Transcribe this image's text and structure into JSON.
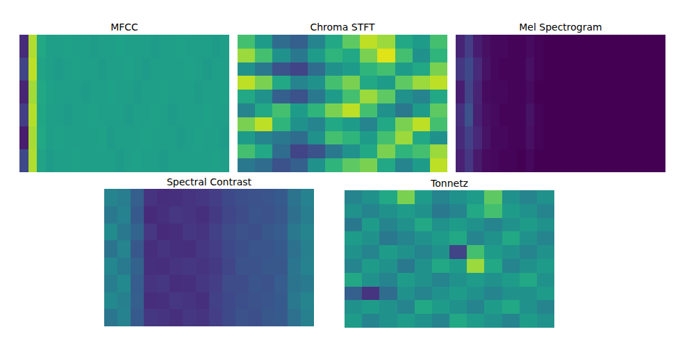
{
  "chart_data": [
    {
      "type": "heatmap",
      "title": "MFCC",
      "color": "viridis",
      "tick_labels": false,
      "color_range": [
        0,
        1
      ],
      "cells": [
        [
          0.12,
          0.88,
          0.6,
          0.56,
          0.56,
          0.57,
          0.56,
          0.56,
          0.55,
          0.56,
          0.56,
          0.57,
          0.56,
          0.56,
          0.56,
          0.55,
          0.56,
          0.56,
          0.57,
          0.56,
          0.56,
          0.56,
          0.55,
          0.56
        ],
        [
          0.2,
          0.9,
          0.58,
          0.56,
          0.55,
          0.56,
          0.57,
          0.56,
          0.56,
          0.55,
          0.56,
          0.56,
          0.57,
          0.56,
          0.55,
          0.56,
          0.56,
          0.56,
          0.56,
          0.57,
          0.56,
          0.55,
          0.56,
          0.56
        ],
        [
          0.1,
          0.86,
          0.6,
          0.57,
          0.56,
          0.56,
          0.56,
          0.55,
          0.56,
          0.56,
          0.57,
          0.56,
          0.56,
          0.55,
          0.56,
          0.56,
          0.57,
          0.56,
          0.56,
          0.56,
          0.55,
          0.56,
          0.56,
          0.57
        ],
        [
          0.18,
          0.89,
          0.59,
          0.56,
          0.56,
          0.55,
          0.56,
          0.56,
          0.57,
          0.56,
          0.56,
          0.56,
          0.55,
          0.56,
          0.56,
          0.57,
          0.56,
          0.55,
          0.56,
          0.56,
          0.56,
          0.57,
          0.56,
          0.56
        ],
        [
          0.08,
          0.87,
          0.6,
          0.56,
          0.57,
          0.56,
          0.56,
          0.56,
          0.56,
          0.57,
          0.55,
          0.56,
          0.56,
          0.56,
          0.57,
          0.56,
          0.56,
          0.56,
          0.55,
          0.56,
          0.57,
          0.56,
          0.56,
          0.55
        ],
        [
          0.22,
          0.88,
          0.58,
          0.55,
          0.56,
          0.56,
          0.57,
          0.56,
          0.56,
          0.56,
          0.56,
          0.55,
          0.56,
          0.57,
          0.56,
          0.56,
          0.55,
          0.56,
          0.56,
          0.56,
          0.56,
          0.56,
          0.57,
          0.56
        ]
      ]
    },
    {
      "type": "heatmap",
      "title": "Chroma STFT",
      "color": "viridis",
      "tick_labels": false,
      "color_range": [
        0,
        1
      ],
      "cells": [
        [
          0.7,
          0.55,
          0.35,
          0.3,
          0.45,
          0.6,
          0.75,
          0.9,
          0.85,
          0.6,
          0.55,
          0.7
        ],
        [
          0.85,
          0.7,
          0.5,
          0.4,
          0.55,
          0.65,
          0.6,
          0.8,
          0.95,
          0.7,
          0.5,
          0.65
        ],
        [
          0.5,
          0.4,
          0.25,
          0.2,
          0.35,
          0.5,
          0.55,
          0.65,
          0.7,
          0.55,
          0.6,
          0.8
        ],
        [
          0.9,
          0.8,
          0.6,
          0.45,
          0.5,
          0.7,
          0.8,
          0.6,
          0.55,
          0.75,
          0.85,
          0.9
        ],
        [
          0.6,
          0.5,
          0.3,
          0.25,
          0.4,
          0.55,
          0.7,
          0.85,
          0.75,
          0.5,
          0.45,
          0.6
        ],
        [
          0.45,
          0.6,
          0.7,
          0.55,
          0.65,
          0.8,
          0.9,
          0.7,
          0.5,
          0.4,
          0.55,
          0.75
        ],
        [
          0.8,
          0.9,
          0.65,
          0.5,
          0.45,
          0.6,
          0.55,
          0.45,
          0.6,
          0.8,
          0.9,
          0.7
        ],
        [
          0.55,
          0.45,
          0.4,
          0.35,
          0.5,
          0.7,
          0.65,
          0.55,
          0.7,
          0.85,
          0.6,
          0.5
        ],
        [
          0.7,
          0.6,
          0.35,
          0.2,
          0.25,
          0.4,
          0.5,
          0.6,
          0.8,
          0.65,
          0.7,
          0.85
        ],
        [
          0.4,
          0.35,
          0.25,
          0.3,
          0.5,
          0.65,
          0.75,
          0.8,
          0.6,
          0.45,
          0.55,
          0.9
        ]
      ]
    },
    {
      "type": "heatmap",
      "title": "Mel Spectrogram",
      "color": "viridis",
      "tick_labels": false,
      "color_range": [
        0,
        1
      ],
      "cells": [
        [
          0.1,
          0.18,
          0.08,
          0.04,
          0.02,
          0.02,
          0.01,
          0.01,
          0.03,
          0.01,
          0,
          0,
          0,
          0,
          0,
          0,
          0,
          0,
          0,
          0,
          0,
          0,
          0,
          0
        ],
        [
          0.16,
          0.22,
          0.12,
          0.05,
          0.02,
          0.01,
          0.01,
          0.01,
          0.04,
          0.01,
          0,
          0,
          0,
          0,
          0,
          0,
          0,
          0,
          0,
          0,
          0,
          0,
          0,
          0
        ],
        [
          0.08,
          0.2,
          0.1,
          0.03,
          0.02,
          0.02,
          0.01,
          0.01,
          0.03,
          0,
          0,
          0,
          0,
          0,
          0,
          0,
          0,
          0,
          0,
          0,
          0,
          0,
          0,
          0
        ],
        [
          0.14,
          0.25,
          0.09,
          0.04,
          0.03,
          0.01,
          0.01,
          0.01,
          0.05,
          0.01,
          0,
          0,
          0,
          0,
          0,
          0,
          0,
          0,
          0,
          0,
          0,
          0,
          0,
          0
        ],
        [
          0.12,
          0.19,
          0.11,
          0.05,
          0.02,
          0.02,
          0.01,
          0.01,
          0.04,
          0.01,
          0,
          0,
          0,
          0,
          0,
          0,
          0,
          0,
          0,
          0,
          0,
          0,
          0,
          0
        ],
        [
          0.09,
          0.16,
          0.07,
          0.03,
          0.02,
          0.01,
          0.01,
          0,
          0.02,
          0,
          0,
          0,
          0,
          0,
          0,
          0,
          0,
          0,
          0,
          0,
          0,
          0,
          0,
          0
        ]
      ]
    },
    {
      "type": "heatmap",
      "title": "Spectral Contrast",
      "color": "viridis",
      "tick_labels": false,
      "color_range": [
        0,
        1
      ],
      "cells": [
        [
          0.45,
          0.42,
          0.3,
          0.15,
          0.13,
          0.14,
          0.15,
          0.16,
          0.18,
          0.22,
          0.24,
          0.25,
          0.26,
          0.28,
          0.38,
          0.44
        ],
        [
          0.4,
          0.44,
          0.28,
          0.12,
          0.14,
          0.16,
          0.15,
          0.14,
          0.17,
          0.21,
          0.23,
          0.26,
          0.25,
          0.27,
          0.36,
          0.42
        ],
        [
          0.48,
          0.4,
          0.32,
          0.16,
          0.12,
          0.13,
          0.16,
          0.15,
          0.19,
          0.23,
          0.25,
          0.24,
          0.27,
          0.29,
          0.4,
          0.45
        ],
        [
          0.38,
          0.45,
          0.27,
          0.13,
          0.15,
          0.14,
          0.13,
          0.16,
          0.18,
          0.22,
          0.24,
          0.26,
          0.26,
          0.28,
          0.37,
          0.43
        ],
        [
          0.46,
          0.41,
          0.31,
          0.14,
          0.13,
          0.15,
          0.16,
          0.15,
          0.17,
          0.21,
          0.25,
          0.25,
          0.27,
          0.27,
          0.39,
          0.44
        ],
        [
          0.42,
          0.47,
          0.29,
          0.15,
          0.16,
          0.13,
          0.14,
          0.16,
          0.18,
          0.23,
          0.23,
          0.26,
          0.25,
          0.29,
          0.38,
          0.41
        ],
        [
          0.47,
          0.43,
          0.3,
          0.13,
          0.14,
          0.16,
          0.15,
          0.14,
          0.19,
          0.22,
          0.24,
          0.25,
          0.26,
          0.28,
          0.4,
          0.45
        ],
        [
          0.39,
          0.44,
          0.28,
          0.16,
          0.15,
          0.14,
          0.16,
          0.15,
          0.18,
          0.22,
          0.25,
          0.24,
          0.27,
          0.28,
          0.37,
          0.43
        ]
      ]
    },
    {
      "type": "heatmap",
      "title": "Tonnetz",
      "color": "viridis",
      "tick_labels": false,
      "color_range": [
        0,
        1
      ],
      "cells": [
        [
          0.45,
          0.5,
          0.6,
          0.8,
          0.55,
          0.45,
          0.5,
          0.55,
          0.75,
          0.5,
          0.45,
          0.5
        ],
        [
          0.5,
          0.45,
          0.5,
          0.55,
          0.5,
          0.4,
          0.45,
          0.6,
          0.7,
          0.55,
          0.5,
          0.45
        ],
        [
          0.4,
          0.55,
          0.45,
          0.5,
          0.6,
          0.5,
          0.55,
          0.5,
          0.45,
          0.5,
          0.55,
          0.5
        ],
        [
          0.55,
          0.5,
          0.4,
          0.45,
          0.5,
          0.55,
          0.6,
          0.45,
          0.5,
          0.6,
          0.5,
          0.45
        ],
        [
          0.5,
          0.45,
          0.55,
          0.5,
          0.45,
          0.5,
          0.2,
          0.7,
          0.55,
          0.5,
          0.45,
          0.5
        ],
        [
          0.45,
          0.55,
          0.5,
          0.4,
          0.5,
          0.6,
          0.55,
          0.85,
          0.6,
          0.45,
          0.5,
          0.55
        ],
        [
          0.6,
          0.5,
          0.45,
          0.55,
          0.5,
          0.45,
          0.5,
          0.55,
          0.5,
          0.55,
          0.6,
          0.5
        ],
        [
          0.3,
          0.15,
          0.35,
          0.5,
          0.45,
          0.5,
          0.55,
          0.5,
          0.45,
          0.5,
          0.5,
          0.55
        ],
        [
          0.5,
          0.55,
          0.5,
          0.45,
          0.6,
          0.55,
          0.5,
          0.45,
          0.55,
          0.6,
          0.5,
          0.45
        ],
        [
          0.55,
          0.45,
          0.5,
          0.55,
          0.5,
          0.45,
          0.6,
          0.55,
          0.5,
          0.45,
          0.55,
          0.5
        ]
      ]
    }
  ]
}
